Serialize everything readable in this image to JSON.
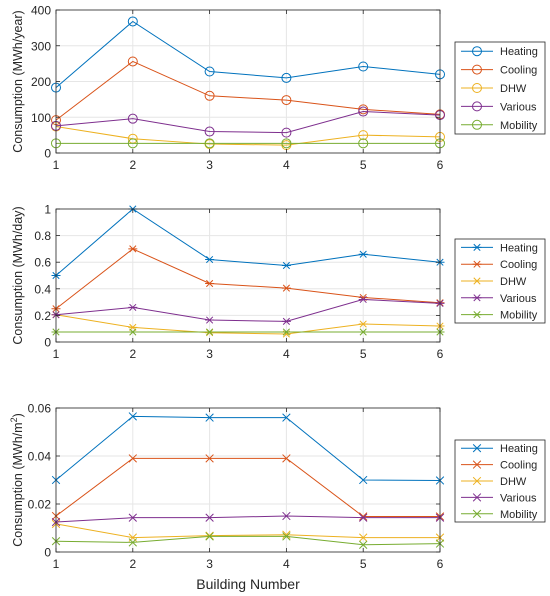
{
  "chart_data": [
    {
      "type": "line",
      "marker": "circle",
      "x": [
        1,
        2,
        3,
        4,
        5,
        6
      ],
      "xlim": [
        1,
        6
      ],
      "ylim": [
        0,
        400
      ],
      "yticks": [
        0,
        100,
        200,
        300,
        400
      ],
      "ytick_labels": [
        "0",
        "100",
        "200",
        "300",
        "400"
      ],
      "ylabel": "Consumption (MWh/year)",
      "xlabel": "",
      "grid": true,
      "legend_position": "right",
      "series": [
        {
          "name": "Heating",
          "color": "#0072BD",
          "values": [
            183,
            368,
            228,
            210,
            242,
            220
          ]
        },
        {
          "name": "Cooling",
          "color": "#D95319",
          "values": [
            92,
            256,
            160,
            148,
            122,
            108
          ]
        },
        {
          "name": "DHW",
          "color": "#EDB120",
          "values": [
            74,
            40,
            25,
            22,
            50,
            45
          ]
        },
        {
          "name": "Various",
          "color": "#7E2F8E",
          "values": [
            76,
            96,
            60,
            57,
            116,
            106
          ]
        },
        {
          "name": "Mobility",
          "color": "#77AC30",
          "values": [
            27,
            27,
            27,
            27,
            27,
            27
          ]
        }
      ]
    },
    {
      "type": "line",
      "marker": "asterisk",
      "x": [
        1,
        2,
        3,
        4,
        5,
        6
      ],
      "xlim": [
        1,
        6
      ],
      "ylim": [
        0,
        1
      ],
      "yticks": [
        0,
        0.2,
        0.4,
        0.6,
        0.8,
        1
      ],
      "ytick_labels": [
        "0",
        "0.2",
        "0.4",
        "0.6",
        "0.8",
        "1"
      ],
      "ylabel": "Consumption (MWh/day)",
      "xlabel": "",
      "grid": true,
      "legend_position": "right",
      "series": [
        {
          "name": "Heating",
          "color": "#0072BD",
          "values": [
            0.5,
            1.0,
            0.62,
            0.575,
            0.66,
            0.6
          ]
        },
        {
          "name": "Cooling",
          "color": "#D95319",
          "values": [
            0.25,
            0.7,
            0.44,
            0.405,
            0.335,
            0.295
          ]
        },
        {
          "name": "DHW",
          "color": "#EDB120",
          "values": [
            0.205,
            0.11,
            0.07,
            0.06,
            0.135,
            0.12
          ]
        },
        {
          "name": "Various",
          "color": "#7E2F8E",
          "values": [
            0.205,
            0.26,
            0.165,
            0.155,
            0.32,
            0.29
          ]
        },
        {
          "name": "Mobility",
          "color": "#77AC30",
          "values": [
            0.075,
            0.075,
            0.075,
            0.075,
            0.075,
            0.075
          ]
        }
      ]
    },
    {
      "type": "line",
      "marker": "x",
      "x": [
        1,
        2,
        3,
        4,
        5,
        6
      ],
      "xlim": [
        1,
        6
      ],
      "ylim": [
        0,
        0.06
      ],
      "yticks": [
        0,
        0.02,
        0.04,
        0.06
      ],
      "ytick_labels": [
        "0",
        "0.02",
        "0.04",
        "0.06"
      ],
      "ylabel_main": "Consumption (MWh/m",
      "ylabel_sup": "2",
      "ylabel_end": ")",
      "xlabel": "Building Number",
      "grid": true,
      "legend_position": "right",
      "series": [
        {
          "name": "Heating",
          "color": "#0072BD",
          "values": [
            0.03,
            0.0565,
            0.056,
            0.056,
            0.03,
            0.0298
          ]
        },
        {
          "name": "Cooling",
          "color": "#D95319",
          "values": [
            0.015,
            0.039,
            0.039,
            0.039,
            0.0148,
            0.0148
          ]
        },
        {
          "name": "DHW",
          "color": "#EDB120",
          "values": [
            0.0117,
            0.006,
            0.0068,
            0.0072,
            0.006,
            0.006
          ]
        },
        {
          "name": "Various",
          "color": "#7E2F8E",
          "values": [
            0.0125,
            0.0143,
            0.0143,
            0.015,
            0.0143,
            0.0143
          ]
        },
        {
          "name": "Mobility",
          "color": "#77AC30",
          "values": [
            0.0045,
            0.004,
            0.0065,
            0.0065,
            0.003,
            0.0035
          ]
        }
      ]
    }
  ],
  "x_tick_labels": [
    "1",
    "2",
    "3",
    "4",
    "5",
    "6"
  ]
}
